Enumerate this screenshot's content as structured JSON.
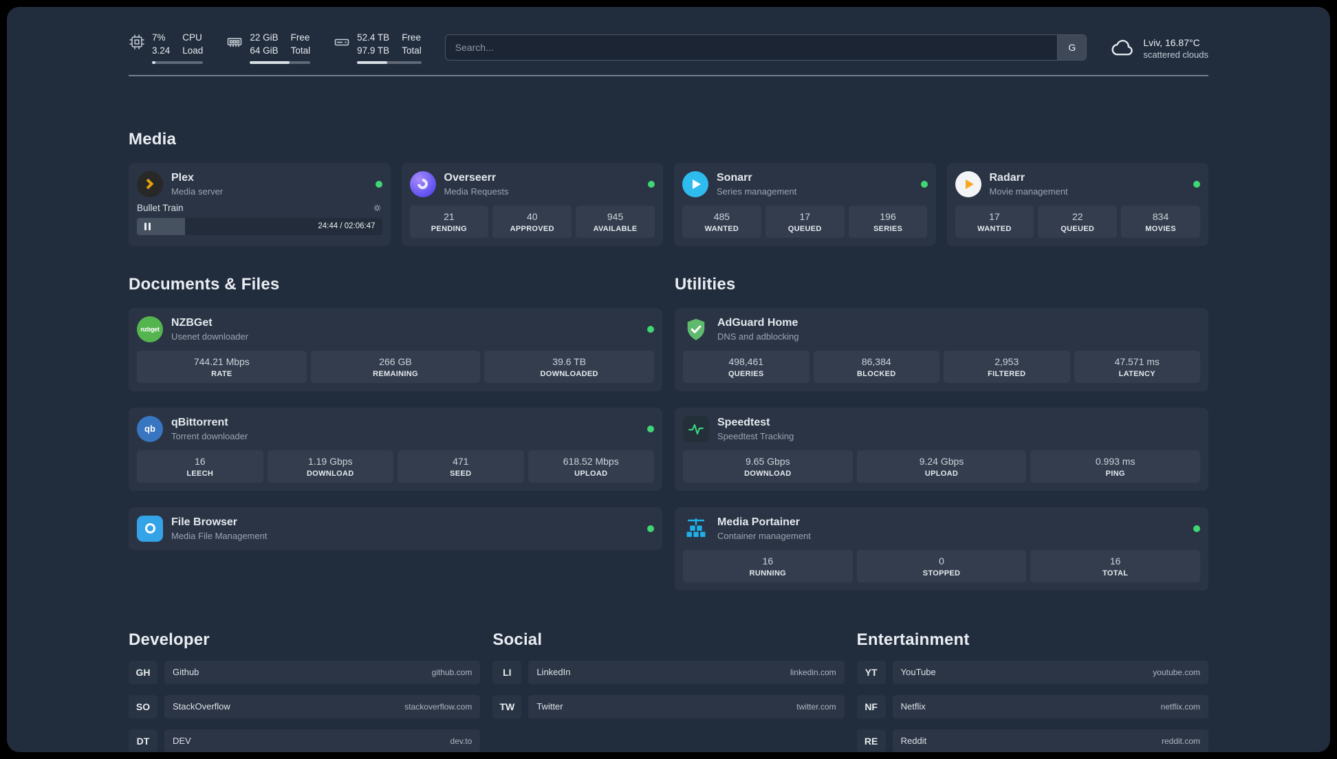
{
  "colors": {
    "background": "#212c3d",
    "card": "#2a3444",
    "tile": "#333d4d",
    "status_online": "#3fd673",
    "plex_amber": "#e5a00d",
    "overseerr_purple": "#5b4df0",
    "sonarr_blue": "#2dbced",
    "radarr_amber": "#f9a825",
    "nzbget_green": "#54b54f",
    "qbittorrent_blue": "#3876c2",
    "adguard_green": "#5fba6e",
    "speedtest_green": "#3ddc84",
    "portainer_blue": "#1fb0e8",
    "filebrowser_blue": "#35a3e8"
  },
  "icons": {
    "nzbget_badge": "nzbget",
    "qbittorrent_badge": "qb"
  },
  "topbar": {
    "cpu": {
      "value1": "7%",
      "value2": "3.24",
      "label1": "CPU",
      "label2": "Load",
      "pct": 7
    },
    "memory": {
      "value1": "22 GiB",
      "value2": "64 GiB",
      "label1": "Free",
      "label2": "Total",
      "pct": 66
    },
    "disk": {
      "value1": "52.4 TB",
      "value2": "97.9 TB",
      "label1": "Free",
      "label2": "Total",
      "pct": 47
    },
    "search": {
      "placeholder": "Search...",
      "button": "G"
    },
    "weather": {
      "location": "Lviv, 16.87°C",
      "condition": "scattered clouds"
    }
  },
  "sections": {
    "media": {
      "title": "Media",
      "cards": [
        {
          "name": "Plex",
          "desc": "Media server",
          "status": "online",
          "player_title": "Bullet Train",
          "player_time": "24:44 / 02:06:47",
          "player_pct": 19.5
        },
        {
          "name": "Overseerr",
          "desc": "Media Requests",
          "status": "online",
          "stats": [
            {
              "value": "21",
              "label": "PENDING"
            },
            {
              "value": "40",
              "label": "APPROVED"
            },
            {
              "value": "945",
              "label": "AVAILABLE"
            }
          ]
        },
        {
          "name": "Sonarr",
          "desc": "Series management",
          "status": "online",
          "stats": [
            {
              "value": "485",
              "label": "WANTED"
            },
            {
              "value": "17",
              "label": "QUEUED"
            },
            {
              "value": "196",
              "label": "SERIES"
            }
          ]
        },
        {
          "name": "Radarr",
          "desc": "Movie management",
          "status": "online",
          "stats": [
            {
              "value": "17",
              "label": "WANTED"
            },
            {
              "value": "22",
              "label": "QUEUED"
            },
            {
              "value": "834",
              "label": "MOVIES"
            }
          ]
        }
      ]
    },
    "documents": {
      "title": "Documents & Files",
      "cards": [
        {
          "name": "NZBGet",
          "desc": "Usenet downloader",
          "status": "online",
          "stats": [
            {
              "value": "744.21 Mbps",
              "label": "RATE"
            },
            {
              "value": "266 GB",
              "label": "REMAINING"
            },
            {
              "value": "39.6 TB",
              "label": "DOWNLOADED"
            }
          ]
        },
        {
          "name": "qBittorrent",
          "desc": "Torrent downloader",
          "status": "online",
          "stats": [
            {
              "value": "16",
              "label": "LEECH"
            },
            {
              "value": "1.19 Gbps",
              "label": "DOWNLOAD"
            },
            {
              "value": "471",
              "label": "SEED"
            },
            {
              "value": "618.52 Mbps",
              "label": "UPLOAD"
            }
          ]
        },
        {
          "name": "File Browser",
          "desc": "Media File Management",
          "status": "online"
        }
      ]
    },
    "utilities": {
      "title": "Utilities",
      "cards": [
        {
          "name": "AdGuard Home",
          "desc": "DNS and adblocking",
          "stats": [
            {
              "value": "498,461",
              "label": "QUERIES"
            },
            {
              "value": "86,384",
              "label": "BLOCKED"
            },
            {
              "value": "2,953",
              "label": "FILTERED"
            },
            {
              "value": "47.571 ms",
              "label": "LATENCY"
            }
          ]
        },
        {
          "name": "Speedtest",
          "desc": "Speedtest Tracking",
          "stats": [
            {
              "value": "9.65 Gbps",
              "label": "DOWNLOAD"
            },
            {
              "value": "9.24 Gbps",
              "label": "UPLOAD"
            },
            {
              "value": "0.993 ms",
              "label": "PING"
            }
          ]
        },
        {
          "name": "Media Portainer",
          "desc": "Container management",
          "status": "online",
          "stats": [
            {
              "value": "16",
              "label": "RUNNING"
            },
            {
              "value": "0",
              "label": "STOPPED"
            },
            {
              "value": "16",
              "label": "TOTAL"
            }
          ]
        }
      ]
    }
  },
  "bookmarks": {
    "groups": [
      {
        "title": "Developer",
        "links": [
          {
            "abbr": "GH",
            "name": "Github",
            "domain": "github.com"
          },
          {
            "abbr": "SO",
            "name": "StackOverflow",
            "domain": "stackoverflow.com"
          },
          {
            "abbr": "DT",
            "name": "DEV",
            "domain": "dev.to"
          }
        ]
      },
      {
        "title": "Social",
        "links": [
          {
            "abbr": "LI",
            "name": "LinkedIn",
            "domain": "linkedin.com"
          },
          {
            "abbr": "TW",
            "name": "Twitter",
            "domain": "twitter.com"
          }
        ]
      },
      {
        "title": "Entertainment",
        "links": [
          {
            "abbr": "YT",
            "name": "YouTube",
            "domain": "youtube.com"
          },
          {
            "abbr": "NF",
            "name": "Netflix",
            "domain": "netflix.com"
          },
          {
            "abbr": "RE",
            "name": "Reddit",
            "domain": "reddit.com"
          }
        ]
      }
    ]
  }
}
